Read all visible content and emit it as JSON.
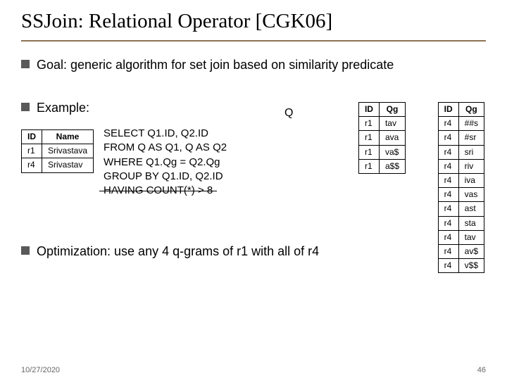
{
  "title": "SSJoin: Relational Operator [CGK06]",
  "bullets": {
    "goal": "Goal: generic algorithm for set join based on similarity predicate",
    "example": "Example:",
    "optimization": "Optimization: use any 4 q-grams of r1 with all of r4"
  },
  "colors": {
    "bullet": "#595959",
    "rule": "#8b7355",
    "text": "#000000",
    "footer": "#666666"
  },
  "name_table": {
    "headers": [
      "ID",
      "Name"
    ],
    "rows": [
      [
        "r1",
        "Srivastava"
      ],
      [
        "r4",
        "Srivastav"
      ]
    ]
  },
  "sql": {
    "select": "SELECT Q1.ID, Q2.ID",
    "from": "FROM Q AS Q1, Q AS Q2",
    "where": "WHERE Q1.Qg = Q2.Qg",
    "group": "GROUP BY Q1.ID, Q2.ID",
    "having": "HAVING COUNT(*) > 8"
  },
  "q_label": "Q",
  "q_table": {
    "headers": [
      "ID",
      "Qg"
    ],
    "rows": [
      [
        "r1",
        "tav"
      ],
      [
        "r1",
        "ava"
      ],
      [
        "r1",
        "va$"
      ],
      [
        "r1",
        "a$$"
      ]
    ]
  },
  "q_table2": {
    "headers": [
      "ID",
      "Qg"
    ],
    "rows": [
      [
        "r4",
        "##s"
      ],
      [
        "r4",
        "#sr"
      ],
      [
        "r4",
        "sri"
      ],
      [
        "r4",
        "riv"
      ],
      [
        "r4",
        "iva"
      ],
      [
        "r4",
        "vas"
      ],
      [
        "r4",
        "ast"
      ],
      [
        "r4",
        "sta"
      ],
      [
        "r4",
        "tav"
      ],
      [
        "r4",
        "av$"
      ],
      [
        "r4",
        "v$$"
      ]
    ]
  },
  "footer": {
    "date": "10/27/2020",
    "page": "46"
  }
}
